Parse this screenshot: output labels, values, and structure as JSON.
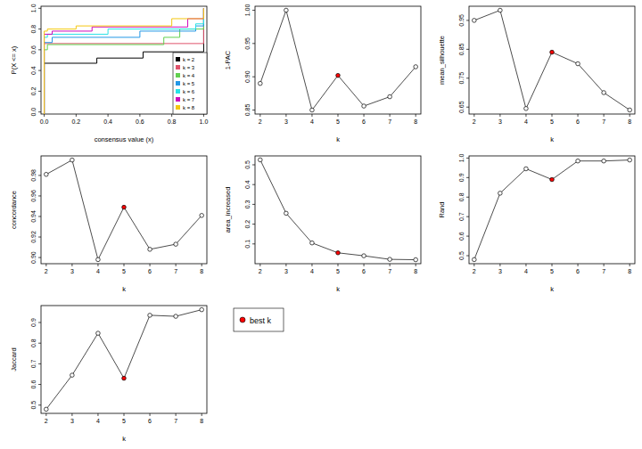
{
  "chart_data": [
    {
      "type": "step",
      "xlabel": "consensus value (x)",
      "ylabel": "P(X <= x)",
      "xlim": [
        -0.02,
        1.02
      ],
      "ylim": [
        -0.02,
        1.02
      ],
      "xticks": [
        {
          "value": 0,
          "label": "0.0"
        },
        {
          "value": 0.2,
          "label": "0.2"
        },
        {
          "value": 0.4,
          "label": "0.4"
        },
        {
          "value": 0.6,
          "label": "0.6"
        },
        {
          "value": 0.8,
          "label": "0.8"
        },
        {
          "value": 1,
          "label": "1.0"
        }
      ],
      "yticks": [
        {
          "value": 0,
          "label": "0.0"
        },
        {
          "value": 0.2,
          "label": "0.2"
        },
        {
          "value": 0.4,
          "label": "0.4"
        },
        {
          "value": 0.6,
          "label": "0.6"
        },
        {
          "value": 0.8,
          "label": "0.8"
        },
        {
          "value": 1,
          "label": "1.0"
        }
      ],
      "legend": "bottom-right",
      "series": [
        {
          "name": "k = 2",
          "color": "#000000",
          "x": [
            0,
            0.33,
            0.62,
            1
          ],
          "values": [
            0.47,
            0.52,
            0.58,
            1
          ]
        },
        {
          "name": "k = 3",
          "color": "#DF536B",
          "x": [
            0,
            1
          ],
          "values": [
            0.66,
            1
          ]
        },
        {
          "name": "k = 4",
          "color": "#61D04F",
          "x": [
            0,
            0.02,
            0.75,
            0.85,
            1
          ],
          "values": [
            0.6,
            0.65,
            0.72,
            0.8,
            1
          ]
        },
        {
          "name": "k = 5",
          "color": "#2297E6",
          "x": [
            0,
            0.05,
            0.6,
            0.95,
            1
          ],
          "values": [
            0.67,
            0.72,
            0.78,
            0.83,
            1
          ]
        },
        {
          "name": "k = 6",
          "color": "#28E2E5",
          "x": [
            0,
            0.02,
            0.4,
            0.95,
            1
          ],
          "values": [
            0.72,
            0.75,
            0.8,
            0.85,
            1
          ]
        },
        {
          "name": "k = 7",
          "color": "#CD0BBC",
          "x": [
            0,
            0.05,
            0.3,
            0.9,
            1
          ],
          "values": [
            0.75,
            0.78,
            0.82,
            0.9,
            1
          ]
        },
        {
          "name": "k = 8",
          "color": "#F5C710",
          "x": [
            0,
            0.02,
            0.2,
            0.8,
            1
          ],
          "values": [
            0.78,
            0.8,
            0.83,
            0.9,
            1
          ]
        }
      ]
    },
    {
      "type": "line",
      "xlabel": "k",
      "ylabel": "1-PAC",
      "x": [
        2,
        3,
        4,
        5,
        6,
        7,
        8
      ],
      "values": [
        0.89,
        1.0,
        0.85,
        0.902,
        0.856,
        0.87,
        0.915
      ],
      "colors": [
        "white",
        "white",
        "white",
        "red",
        "white",
        "white",
        "white"
      ],
      "xlim": [
        1.8,
        8.2
      ],
      "ylim": [
        0.844,
        1.006
      ],
      "xticks": [
        2,
        3,
        4,
        5,
        6,
        7,
        8
      ],
      "yticks": [
        0.85,
        {
          "value": 0.9,
          "label": "0.90"
        },
        0.95,
        {
          "value": 1,
          "label": "1.00"
        }
      ]
    },
    {
      "type": "line",
      "xlabel": "k",
      "ylabel": "mean_silhouette",
      "x": [
        2,
        3,
        4,
        5,
        6,
        7,
        8
      ],
      "values": [
        0.95,
        0.985,
        0.645,
        0.84,
        0.8,
        0.7,
        0.64
      ],
      "colors": [
        "white",
        "white",
        "white",
        "red",
        "white",
        "white",
        "white"
      ],
      "xlim": [
        1.8,
        8.2
      ],
      "ylim": [
        0.626,
        0.999
      ],
      "xticks": [
        2,
        3,
        4,
        5,
        6,
        7,
        8
      ],
      "yticks": [
        0.65,
        0.75,
        0.85,
        0.95
      ]
    },
    {
      "type": "line",
      "xlabel": "k",
      "ylabel": "concordance",
      "x": [
        2,
        3,
        4,
        5,
        6,
        7,
        8
      ],
      "values": [
        0.981,
        0.995,
        0.898,
        0.949,
        0.908,
        0.913,
        0.941
      ],
      "colors": [
        "white",
        "white",
        "white",
        "red",
        "white",
        "white",
        "white"
      ],
      "xlim": [
        1.8,
        8.2
      ],
      "ylim": [
        0.894,
        0.999
      ],
      "xticks": [
        2,
        3,
        4,
        5,
        6,
        7,
        8
      ],
      "yticks": [
        {
          "value": 0.9,
          "label": "0.90"
        },
        0.92,
        0.94,
        0.96,
        0.98
      ]
    },
    {
      "type": "line",
      "xlabel": "k",
      "ylabel": "area_increased",
      "x": [
        2,
        3,
        4,
        5,
        6,
        7,
        8
      ],
      "values": [
        0.525,
        0.255,
        0.105,
        0.055,
        0.04,
        0.022,
        0.02
      ],
      "colors": [
        "white",
        "white",
        "white",
        "red",
        "white",
        "white",
        "white"
      ],
      "xlim": [
        1.8,
        8.2
      ],
      "ylim": [
        0.0,
        0.545
      ],
      "xticks": [
        2,
        3,
        4,
        5,
        6,
        7,
        8
      ],
      "yticks": [
        0.1,
        0.2,
        0.3,
        0.4,
        0.5
      ]
    },
    {
      "type": "line",
      "xlabel": "k",
      "ylabel": "Rand",
      "x": [
        2,
        3,
        4,
        5,
        6,
        7,
        8
      ],
      "values": [
        0.48,
        0.82,
        0.945,
        0.89,
        0.985,
        0.985,
        0.99
      ],
      "colors": [
        "white",
        "white",
        "white",
        "red",
        "white",
        "white",
        "white"
      ],
      "xlim": [
        1.8,
        8.2
      ],
      "ylim": [
        0.459,
        1.011
      ],
      "xticks": [
        2,
        3,
        4,
        5,
        6,
        7,
        8
      ],
      "yticks": [
        0.5,
        0.6,
        0.7,
        0.8,
        0.9,
        {
          "value": 1,
          "label": "1.0"
        }
      ]
    },
    {
      "type": "line",
      "xlabel": "k",
      "ylabel": "Jaccard",
      "x": [
        2,
        3,
        4,
        5,
        6,
        7,
        8
      ],
      "values": [
        0.48,
        0.645,
        0.848,
        0.63,
        0.935,
        0.93,
        0.962
      ],
      "colors": [
        "white",
        "white",
        "white",
        "red",
        "white",
        "white",
        "white"
      ],
      "xlim": [
        1.8,
        8.2
      ],
      "ylim": [
        0.46,
        0.982
      ],
      "xticks": [
        2,
        3,
        4,
        5,
        6,
        7,
        8
      ],
      "yticks": [
        0.5,
        0.6,
        0.7,
        0.8,
        0.9
      ]
    }
  ],
  "legend_panel": {
    "label": "best k",
    "color": "red"
  }
}
